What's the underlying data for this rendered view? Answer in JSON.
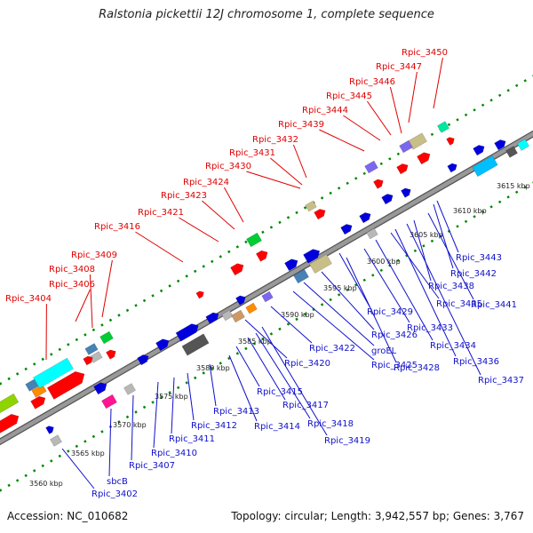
{
  "title": "Ralstonia pickettii 12J chromosome 1, complete sequence",
  "footer": {
    "accession": "Accession: NC_010682",
    "summary": "Topology: circular; Length: 3,942,557 bp; Genes: 3,767"
  },
  "colors": {
    "upper_label": "#e00000",
    "lower_label": "#1010cc",
    "backbone": "#999999",
    "tick": "#008800"
  },
  "kbp_ticks": [
    "3560 kbp",
    "3565 kbp",
    "3570 kbp",
    "3575 kbp",
    "3580 kbp",
    "3585 kbp",
    "3590 kbp",
    "3595 kbp",
    "3600 kbp",
    "3605 kbp",
    "3610 kbp",
    "3615 kbp"
  ],
  "upper_labels": [
    "Rpic_3404",
    "Rpic_3406",
    "Rpic_3408",
    "Rpic_3409",
    "Rpic_3416",
    "Rpic_3421",
    "Rpic_3423",
    "Rpic_3424",
    "Rpic_3430",
    "Rpic_3431",
    "Rpic_3432",
    "Rpic_3439",
    "Rpic_3444",
    "Rpic_3445",
    "Rpic_3446",
    "Rpic_3447",
    "Rpic_3450"
  ],
  "lower_labels": [
    "Rpic_3402",
    "sbcB",
    "Rpic_3407",
    "Rpic_3410",
    "Rpic_3411",
    "Rpic_3412",
    "Rpic_3413",
    "Rpic_3414",
    "Rpic_3415",
    "Rpic_3417",
    "Rpic_3418",
    "Rpic_3419",
    "Rpic_3420",
    "Rpic_3422",
    "Rpic_3425",
    "groEL",
    "Rpic_3426",
    "Rpic_3428",
    "Rpic_3429",
    "Rpic_3433",
    "Rpic_3434",
    "Rpic_3435",
    "Rpic_3436",
    "Rpic_3437",
    "Rpic_3438",
    "Rpic_3441",
    "Rpic_3442",
    "Rpic_3443"
  ]
}
